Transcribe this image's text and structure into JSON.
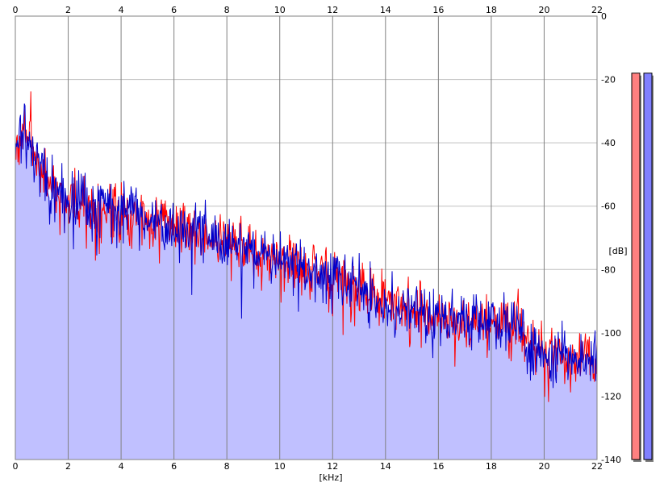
{
  "chart_data": {
    "type": "line",
    "xlabel": "[kHz]",
    "ylabel": "[dB]",
    "xlim": [
      0,
      22
    ],
    "ylim": [
      -140,
      0
    ],
    "x_ticks": [
      0,
      2,
      4,
      6,
      8,
      10,
      12,
      14,
      16,
      18,
      20,
      22
    ],
    "y_ticks": [
      0,
      -20,
      -40,
      -60,
      -80,
      -100,
      -120,
      -140
    ],
    "x_tick_labels": [
      "0",
      "2",
      "4",
      "6",
      "8",
      "10",
      "12",
      "14",
      "16",
      "18",
      "20",
      "22"
    ],
    "y_tick_labels": [
      "0",
      "-20",
      "-40",
      "-60",
      "-80",
      "-100",
      "-120",
      "-140"
    ],
    "grid": true,
    "x_axis_top_labels": true,
    "fill_under_series": 1,
    "envelope": {
      "x": [
        0,
        0.3,
        1,
        2,
        3,
        4,
        5,
        6,
        7,
        8,
        9,
        10,
        11,
        12,
        13,
        14,
        15,
        16,
        17,
        18,
        19,
        19.5,
        20,
        21,
        22
      ],
      "y": [
        -44,
        -35,
        -50,
        -58,
        -60,
        -62,
        -63,
        -66,
        -69,
        -71,
        -74,
        -77,
        -79,
        -82,
        -86,
        -91,
        -93,
        -96,
        -97,
        -97,
        -97,
        -105,
        -107,
        -108,
        -110
      ]
    },
    "series": [
      {
        "color": "#ff0000",
        "seed": 7
      },
      {
        "color": "#0000cc",
        "seed": 13
      }
    ],
    "level_meters": [
      {
        "color": "#ff8080",
        "value_db": -18
      },
      {
        "color": "#8080ff",
        "value_db": -18
      }
    ],
    "colors": {
      "fill": "#c0c0ff",
      "grid": "#bfbfbf",
      "axis": "#808080"
    }
  }
}
